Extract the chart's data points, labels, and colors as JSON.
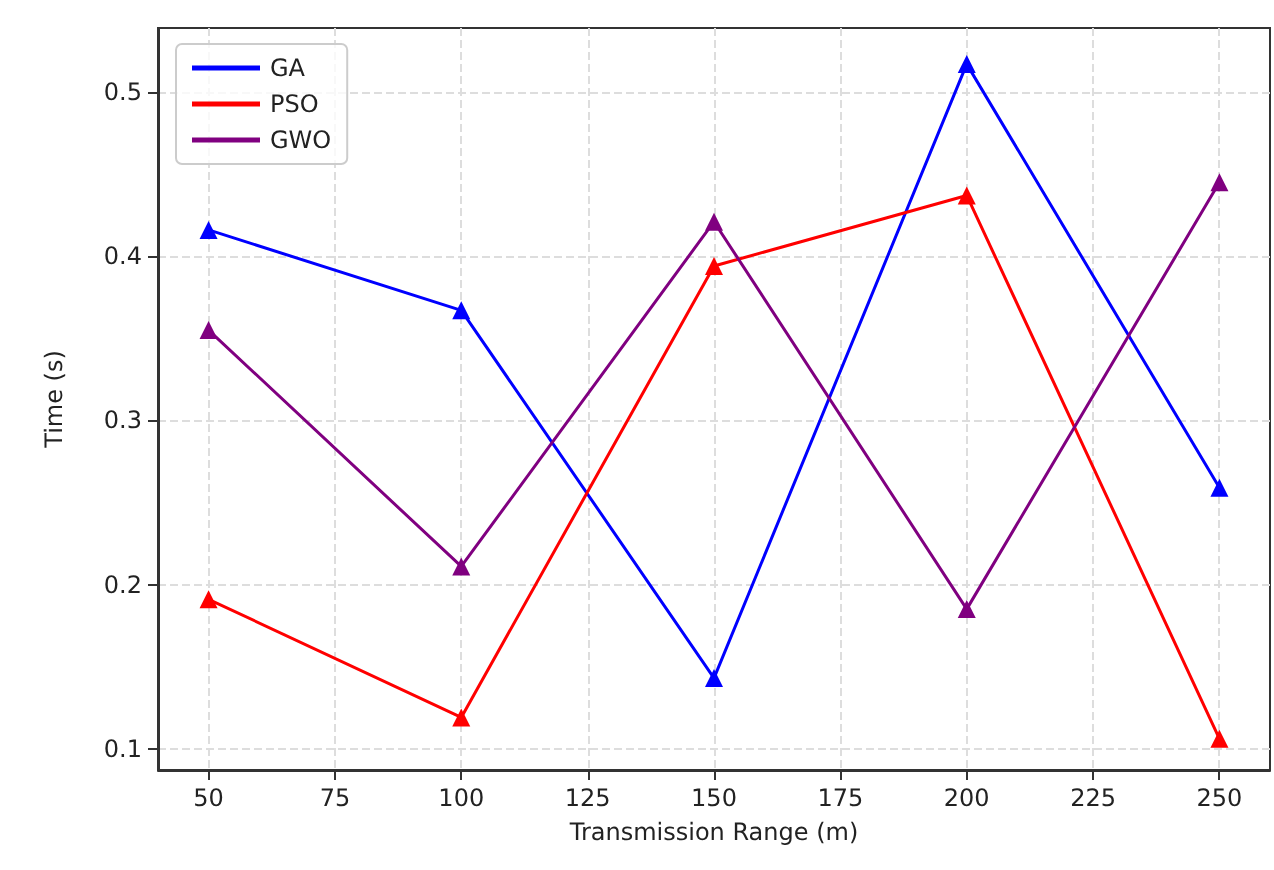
{
  "chart_data": {
    "type": "line",
    "xlabel": "Transmission Range (m)",
    "ylabel": "Time (s)",
    "x": [
      50,
      100,
      150,
      200,
      250
    ],
    "series": [
      {
        "name": "GA",
        "color": "#0000ff",
        "values": [
          0.416,
          0.367,
          0.143,
          0.517,
          0.259
        ]
      },
      {
        "name": "PSO",
        "color": "#ff0000",
        "values": [
          0.191,
          0.119,
          0.394,
          0.437,
          0.106
        ]
      },
      {
        "name": "GWO",
        "color": "#800080",
        "values": [
          0.355,
          0.211,
          0.421,
          0.185,
          0.445
        ]
      }
    ],
    "xlim": [
      40,
      260
    ],
    "xticks": [
      50,
      75,
      100,
      125,
      150,
      175,
      200,
      225,
      250
    ],
    "ylim": [
      0.087,
      0.539
    ],
    "yticks": [
      0.1,
      0.2,
      0.3,
      0.4,
      0.5
    ],
    "grid": true,
    "legend": "top left",
    "marker": "triangle",
    "line_style": "solid"
  }
}
